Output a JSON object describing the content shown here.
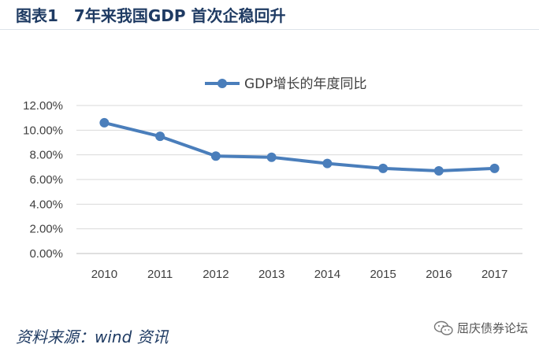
{
  "figure_title": "图表1　7年来我国GDP 首次企稳回升",
  "source_note": "资料来源：wind 资讯",
  "watermark": {
    "text": "屈庆债券论坛",
    "icon": "wechat-icon"
  },
  "colors": {
    "series": "#4a7ebb",
    "grid": "#d9d9d9",
    "title": "#1f3b63",
    "tick": "#404040"
  },
  "chart_data": {
    "type": "line",
    "title": "",
    "xlabel": "",
    "ylabel": "",
    "x": [
      "2010",
      "2011",
      "2012",
      "2013",
      "2014",
      "2015",
      "2016",
      "2017"
    ],
    "series": [
      {
        "name": "GDP增长的年度同比",
        "values": [
          10.6,
          9.5,
          7.9,
          7.8,
          7.3,
          6.9,
          6.7,
          6.9
        ]
      }
    ],
    "ylim": [
      0,
      12
    ],
    "yticks": [
      "0.00%",
      "2.00%",
      "4.00%",
      "6.00%",
      "8.00%",
      "10.00%",
      "12.00%"
    ],
    "legend_position": "top-center",
    "grid": "horizontal"
  }
}
